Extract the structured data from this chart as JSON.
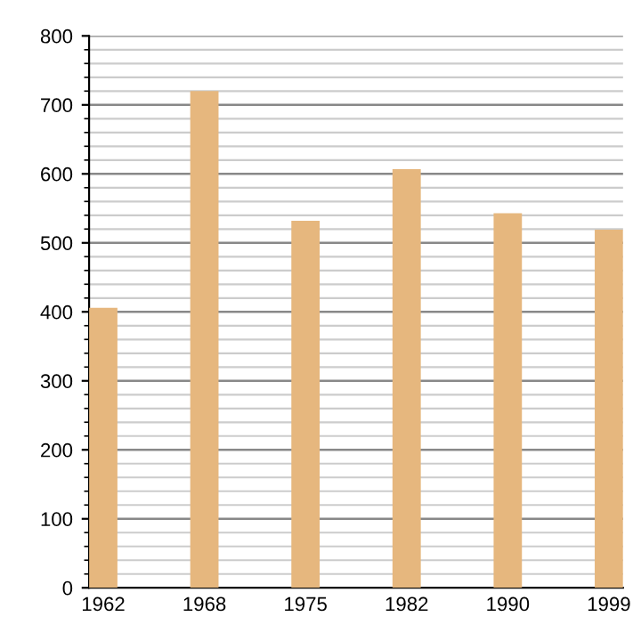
{
  "chart_data": {
    "type": "bar",
    "categories": [
      "1962",
      "1968",
      "1975",
      "1982",
      "1990",
      "1999"
    ],
    "values": [
      406,
      720,
      532,
      607,
      543,
      519
    ],
    "color": "#e6b77e",
    "ylim": [
      0,
      800
    ],
    "yticks": [
      0,
      100,
      200,
      300,
      400,
      500,
      600,
      700,
      800
    ],
    "grid": "y"
  }
}
